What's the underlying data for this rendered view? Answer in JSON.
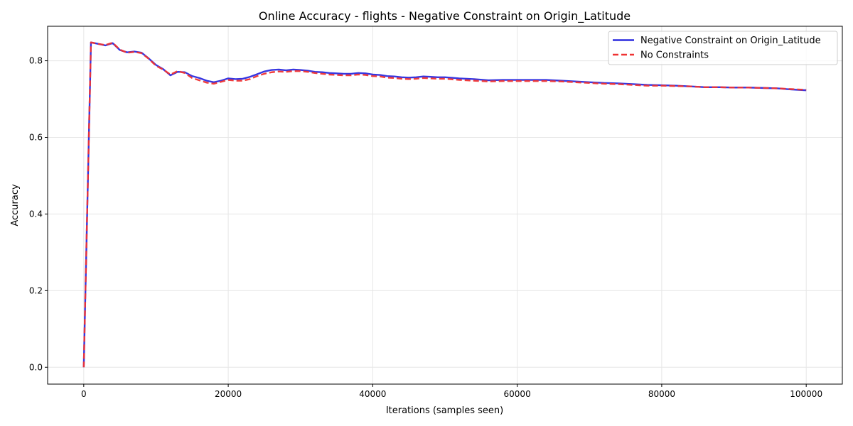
{
  "chart_data": {
    "type": "line",
    "title": "Online Accuracy - flights - Negative Constraint on Origin_Latitude",
    "xlabel": "Iterations (samples seen)",
    "ylabel": "Accuracy",
    "xlim": [
      -5000,
      105000
    ],
    "ylim": [
      -0.044,
      0.89
    ],
    "xticks": [
      0,
      20000,
      40000,
      60000,
      80000,
      100000
    ],
    "xtick_labels": [
      "0",
      "20000",
      "40000",
      "60000",
      "80000",
      "100000"
    ],
    "yticks": [
      0.0,
      0.2,
      0.4,
      0.6,
      0.8
    ],
    "ytick_labels": [
      "0.0",
      "0.2",
      "0.4",
      "0.6",
      "0.8"
    ],
    "grid": true,
    "legend_position": "top-right",
    "series": [
      {
        "name": "Negative Constraint on Origin_Latitude",
        "color": "#2b2bdf",
        "style": "solid",
        "x": [
          0,
          1000,
          2000,
          3000,
          4000,
          5000,
          6000,
          7000,
          8000,
          9000,
          10000,
          11000,
          12000,
          13000,
          14000,
          15000,
          16000,
          17000,
          18000,
          19000,
          20000,
          21000,
          22000,
          23000,
          24000,
          25000,
          26000,
          27000,
          28000,
          29000,
          30000,
          31000,
          32000,
          33000,
          34000,
          35000,
          36000,
          37000,
          38000,
          39000,
          40000,
          41000,
          42000,
          43000,
          44000,
          45000,
          46000,
          47000,
          48000,
          49000,
          50000,
          52000,
          54000,
          56000,
          58000,
          60000,
          62000,
          64000,
          66000,
          68000,
          70000,
          72000,
          74000,
          76000,
          78000,
          80000,
          82000,
          84000,
          86000,
          88000,
          90000,
          92000,
          94000,
          96000,
          98000,
          100000
        ],
        "y": [
          0.0,
          0.848,
          0.844,
          0.84,
          0.846,
          0.828,
          0.822,
          0.824,
          0.821,
          0.806,
          0.789,
          0.778,
          0.762,
          0.771,
          0.77,
          0.76,
          0.755,
          0.748,
          0.744,
          0.748,
          0.754,
          0.752,
          0.753,
          0.758,
          0.765,
          0.772,
          0.776,
          0.777,
          0.775,
          0.777,
          0.776,
          0.774,
          0.771,
          0.77,
          0.768,
          0.767,
          0.766,
          0.766,
          0.768,
          0.767,
          0.764,
          0.763,
          0.76,
          0.759,
          0.757,
          0.756,
          0.757,
          0.759,
          0.758,
          0.757,
          0.757,
          0.754,
          0.752,
          0.749,
          0.75,
          0.75,
          0.75,
          0.75,
          0.748,
          0.746,
          0.744,
          0.742,
          0.741,
          0.739,
          0.737,
          0.736,
          0.735,
          0.733,
          0.731,
          0.731,
          0.73,
          0.73,
          0.729,
          0.728,
          0.725,
          0.723
        ]
      },
      {
        "name": "No Constraints",
        "color": "#ef3333",
        "style": "dashed",
        "x": [
          0,
          1000,
          2000,
          3000,
          4000,
          5000,
          6000,
          7000,
          8000,
          9000,
          10000,
          11000,
          12000,
          13000,
          14000,
          15000,
          16000,
          17000,
          18000,
          19000,
          20000,
          21000,
          22000,
          23000,
          24000,
          25000,
          26000,
          27000,
          28000,
          29000,
          30000,
          31000,
          32000,
          33000,
          34000,
          35000,
          36000,
          37000,
          38000,
          39000,
          40000,
          41000,
          42000,
          43000,
          44000,
          45000,
          46000,
          47000,
          48000,
          49000,
          50000,
          52000,
          54000,
          56000,
          58000,
          60000,
          62000,
          64000,
          66000,
          68000,
          70000,
          72000,
          74000,
          76000,
          78000,
          80000,
          82000,
          84000,
          86000,
          88000,
          90000,
          92000,
          94000,
          96000,
          98000,
          100000
        ],
        "y": [
          0.0,
          0.848,
          0.844,
          0.841,
          0.847,
          0.829,
          0.821,
          0.823,
          0.82,
          0.805,
          0.787,
          0.777,
          0.764,
          0.773,
          0.768,
          0.755,
          0.749,
          0.743,
          0.74,
          0.745,
          0.75,
          0.748,
          0.748,
          0.752,
          0.76,
          0.766,
          0.77,
          0.772,
          0.771,
          0.773,
          0.773,
          0.771,
          0.768,
          0.766,
          0.764,
          0.763,
          0.762,
          0.762,
          0.764,
          0.763,
          0.76,
          0.759,
          0.756,
          0.755,
          0.753,
          0.752,
          0.753,
          0.755,
          0.754,
          0.753,
          0.753,
          0.75,
          0.748,
          0.746,
          0.747,
          0.747,
          0.747,
          0.747,
          0.746,
          0.744,
          0.742,
          0.74,
          0.739,
          0.737,
          0.735,
          0.735,
          0.734,
          0.733,
          0.731,
          0.731,
          0.73,
          0.73,
          0.729,
          0.728,
          0.726,
          0.724
        ]
      }
    ]
  }
}
